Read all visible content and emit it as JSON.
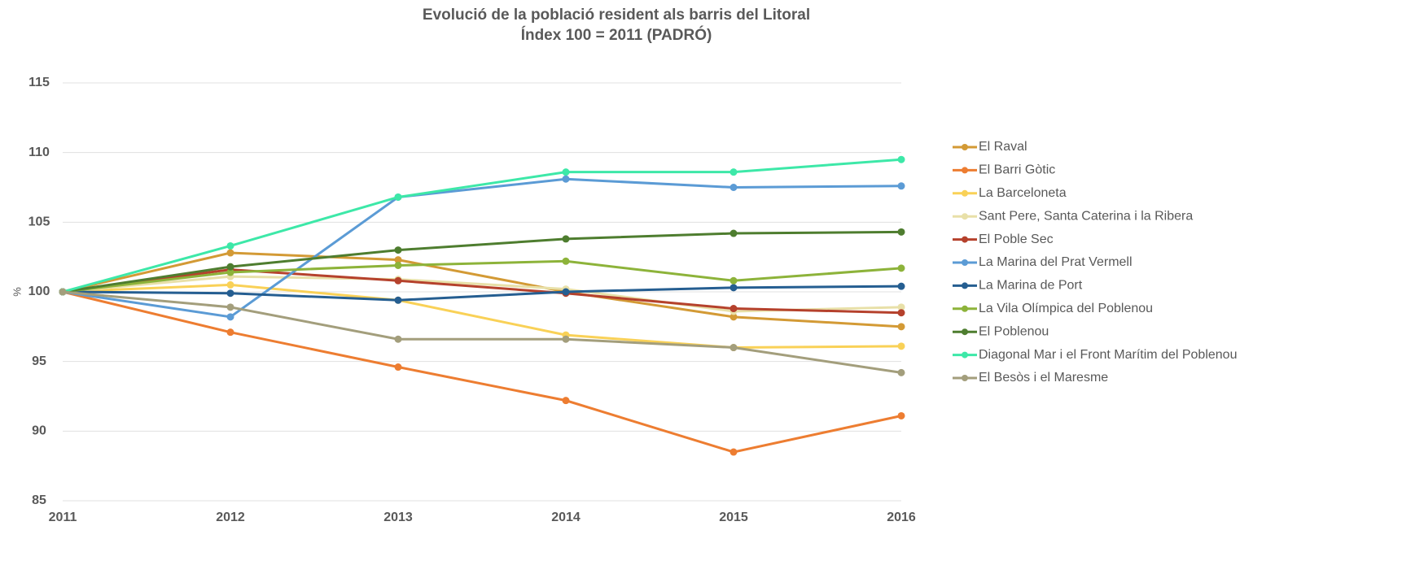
{
  "chart_data": {
    "type": "line",
    "title": "Evolució de la població resident als barris del Litoral",
    "subtitle": "Índex 100 = 2011 (PADRÓ)",
    "y_label": "%",
    "categories": [
      "2011",
      "2012",
      "2013",
      "2014",
      "2015",
      "2016"
    ],
    "ylim": [
      85,
      115
    ],
    "yticks": [
      85,
      90,
      95,
      100,
      105,
      110,
      115
    ],
    "grid": true,
    "legend": "right",
    "series": [
      {
        "name": "El Raval",
        "color": "#d39a35",
        "values": [
          100,
          102.8,
          102.3,
          100.0,
          98.2,
          97.5
        ]
      },
      {
        "name": "El Barri Gòtic",
        "color": "#ed7d31",
        "values": [
          100,
          97.1,
          94.6,
          92.2,
          88.5,
          91.1
        ]
      },
      {
        "name": "La Barceloneta",
        "color": "#f9d157",
        "values": [
          100,
          100.5,
          99.4,
          96.9,
          96.0,
          96.1
        ]
      },
      {
        "name": "Sant Pere, Santa Caterina i la Ribera",
        "color": "#e8e0a8",
        "values": [
          100,
          101.1,
          100.9,
          100.2,
          98.6,
          98.9
        ]
      },
      {
        "name": "El Poble Sec",
        "color": "#b5412c",
        "values": [
          100,
          101.6,
          100.8,
          99.9,
          98.8,
          98.5
        ]
      },
      {
        "name": "La Marina del Prat Vermell",
        "color": "#5b9bd5",
        "values": [
          100,
          98.2,
          106.8,
          108.1,
          107.5,
          107.6
        ]
      },
      {
        "name": "La Marina de Port",
        "color": "#255e91",
        "values": [
          100,
          99.9,
          99.4,
          100.0,
          100.3,
          100.4
        ]
      },
      {
        "name": "La Vila Olímpica del Poblenou",
        "color": "#8db33a",
        "values": [
          100,
          101.4,
          101.9,
          102.2,
          100.8,
          101.7
        ]
      },
      {
        "name": "El Poblenou",
        "color": "#4e7d2f",
        "values": [
          100,
          101.8,
          103.0,
          103.8,
          104.2,
          104.3
        ]
      },
      {
        "name": "Diagonal Mar i el Front Marítim del Poblenou",
        "color": "#3de8a8",
        "values": [
          100,
          103.3,
          106.8,
          108.6,
          108.6,
          109.5
        ]
      },
      {
        "name": "El Besòs i el Maresme",
        "color": "#a39e7c",
        "values": [
          100,
          98.9,
          96.6,
          96.6,
          96.0,
          94.2
        ]
      }
    ]
  }
}
